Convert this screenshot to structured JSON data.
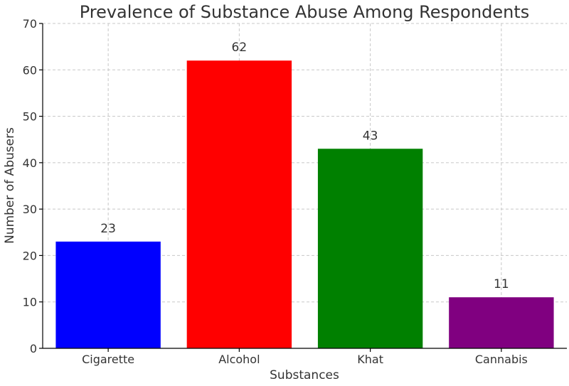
{
  "chart_data": {
    "type": "bar",
    "title": "Prevalence of Substance Abuse Among Respondents",
    "xlabel": "Substances",
    "ylabel": "Number of Abusers",
    "categories": [
      "Cigarette",
      "Alcohol",
      "Khat",
      "Cannabis"
    ],
    "values": [
      23,
      62,
      43,
      11
    ],
    "colors": [
      "#0000ff",
      "#ff0000",
      "#008000",
      "#800080"
    ],
    "ylim": [
      0,
      70
    ],
    "yticks": [
      0,
      10,
      20,
      30,
      40,
      50,
      60,
      70
    ],
    "grid": true
  }
}
